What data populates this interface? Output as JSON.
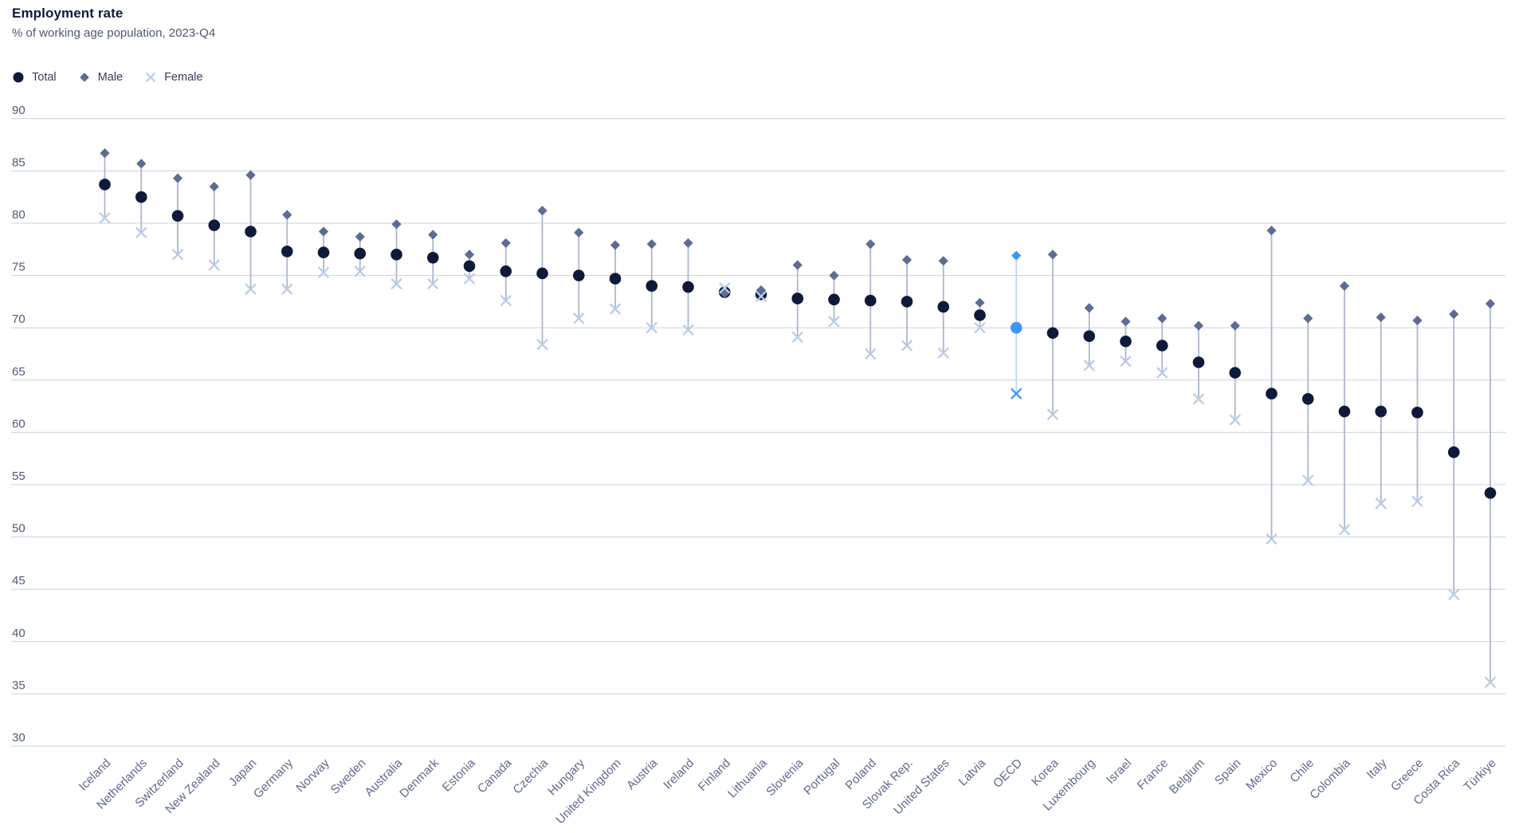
{
  "header": {
    "title": "Employment rate",
    "subtitle": "% of working age population, 2023-Q4"
  },
  "legend": {
    "items": [
      {
        "label": "Total",
        "marker": "circle"
      },
      {
        "label": "Male",
        "marker": "diamond"
      },
      {
        "label": "Female",
        "marker": "x"
      }
    ]
  },
  "chart_data": {
    "type": "scatter",
    "title": "Employment rate",
    "subtitle": "% of working age population, 2023-Q4",
    "ylabel": "",
    "xlabel": "",
    "ylim": [
      30,
      90
    ],
    "yticks": [
      90,
      85,
      80,
      75,
      70,
      65,
      60,
      55,
      50,
      45,
      40,
      35,
      30
    ],
    "grid": true,
    "legend_position": "top-left",
    "highlight_category": "OECD",
    "categories": [
      "Iceland",
      "Netherlands",
      "Switzerland",
      "New Zealand",
      "Japan",
      "Germany",
      "Norway",
      "Sweden",
      "Australia",
      "Denmark",
      "Estonia",
      "Canada",
      "Czechia",
      "Hungary",
      "United Kingdom",
      "Austria",
      "Ireland",
      "Finland",
      "Lithuania",
      "Slovenia",
      "Portugal",
      "Poland",
      "Slovak Rep.",
      "United States",
      "Latvia",
      "OECD",
      "Korea",
      "Luxembourg",
      "Israel",
      "France",
      "Belgium",
      "Spain",
      "Mexico",
      "Chile",
      "Colombia",
      "Italy",
      "Greece",
      "Costa Rica",
      "Türkiye"
    ],
    "series": [
      {
        "name": "Total",
        "marker": "circle",
        "values": [
          83.7,
          82.5,
          80.7,
          79.8,
          79.2,
          77.3,
          77.2,
          77.1,
          77.0,
          76.7,
          75.9,
          75.4,
          75.2,
          75.0,
          74.7,
          74.0,
          73.9,
          73.4,
          73.2,
          72.8,
          72.7,
          72.6,
          72.5,
          72.0,
          71.2,
          70.0,
          69.5,
          69.2,
          68.7,
          68.3,
          66.7,
          65.7,
          63.7,
          63.2,
          62.0,
          62.0,
          61.9,
          58.1,
          54.2
        ]
      },
      {
        "name": "Male",
        "marker": "diamond",
        "values": [
          86.7,
          85.7,
          84.3,
          83.5,
          84.6,
          80.8,
          79.2,
          78.7,
          79.9,
          78.9,
          77.0,
          78.1,
          81.2,
          79.1,
          77.9,
          78.0,
          78.1,
          73.3,
          73.6,
          76.0,
          75.0,
          78.0,
          76.5,
          76.4,
          72.4,
          76.9,
          77.0,
          71.9,
          70.6,
          70.9,
          70.2,
          70.2,
          79.3,
          70.9,
          74.0,
          71.0,
          70.7,
          71.3,
          72.3
        ]
      },
      {
        "name": "Female",
        "marker": "x",
        "values": [
          80.5,
          79.1,
          77.0,
          76.0,
          73.7,
          73.7,
          75.3,
          75.4,
          74.2,
          74.2,
          74.7,
          72.6,
          68.4,
          70.9,
          71.8,
          70.0,
          69.8,
          73.8,
          73.0,
          69.1,
          70.6,
          67.5,
          68.3,
          67.6,
          70.0,
          63.7,
          61.7,
          66.4,
          66.8,
          65.7,
          63.2,
          61.2,
          49.8,
          55.4,
          50.7,
          53.2,
          53.4,
          44.5,
          36.1
        ]
      }
    ],
    "colors": {
      "total": "#0f1a3a",
      "male": "#5d6c94",
      "female": "#b9cde7",
      "range_line": "#aeb7c8",
      "highlight": "#3e96f5",
      "highlight_line": "#b5d8fb",
      "grid": "#c9d3de",
      "axis_text": "#4d5a78",
      "category_text": "#5f6b8c"
    }
  }
}
